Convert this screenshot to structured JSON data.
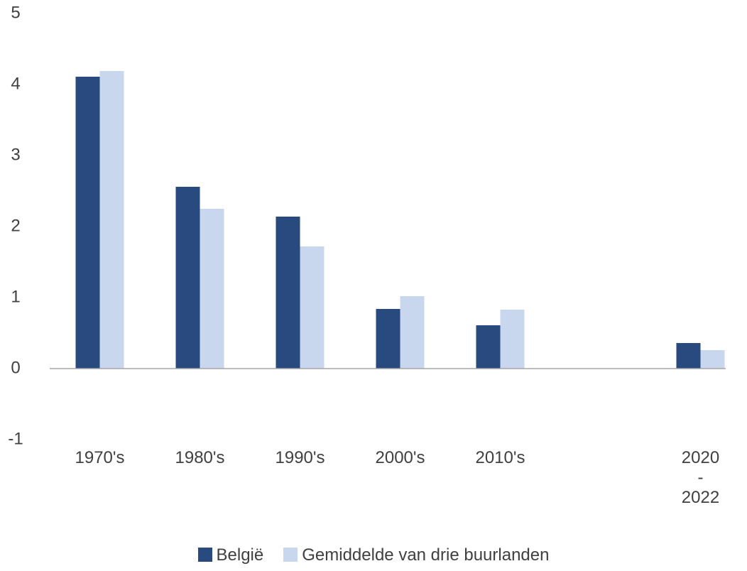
{
  "chart_data": {
    "type": "bar",
    "categories": [
      "1970's",
      "1980's",
      "1990's",
      "2000's",
      "2010's",
      null,
      "2020\n-\n2022"
    ],
    "series": [
      {
        "name": "België",
        "color": "#284a7e",
        "values": [
          4.11,
          2.56,
          2.14,
          0.84,
          0.61,
          null,
          0.36
        ]
      },
      {
        "name": "Gemiddelde van drie buurlanden",
        "color": "#c9d7ee",
        "values": [
          4.19,
          2.25,
          1.72,
          1.02,
          0.83,
          null,
          0.26
        ]
      }
    ],
    "ylim": [
      -1,
      5
    ],
    "yticks": [
      -1,
      0,
      1,
      2,
      3,
      4,
      5
    ],
    "grid": false,
    "legend": "bottom"
  }
}
